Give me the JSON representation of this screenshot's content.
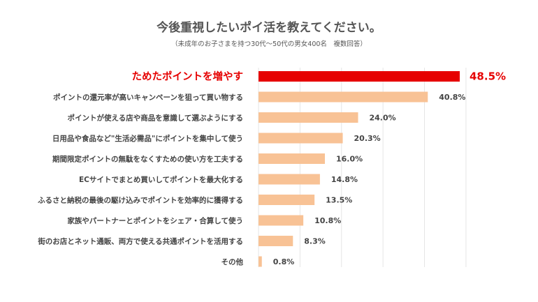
{
  "chart_data": {
    "type": "bar",
    "orientation": "horizontal",
    "title": "今後重視したいポイ活を教えてください。",
    "subtitle": "（未成年のお子さまを持つ30代〜50代の男女400名　複数回答）",
    "xlim": [
      0,
      50
    ],
    "grid": true,
    "categories": [
      "ためたポイントを増やす",
      "ポイントの還元率が高いキャンペーンを狙って買い物する",
      "ポイントが使える店や商品を意識して選ぶようにする",
      "日用品や食品など\"生活必需品\"にポイントを集中して使う",
      "期間限定ポイントの無駄をなくすための使い方を工夫する",
      "ECサイトでまとめ買いしてポイントを最大化する",
      "ふるさと納税の最後の駆け込みでポイントを効率的に獲得する",
      "家族やパートナーとポイントをシェア・合算して使う",
      "街のお店とネット通販、両方で使える共通ポイントを活用する",
      "その他"
    ],
    "values": [
      48.5,
      40.8,
      24.0,
      20.3,
      16.0,
      14.8,
      13.5,
      10.8,
      8.3,
      0.8
    ],
    "value_labels": [
      "48.5%",
      "40.8%",
      "24.0%",
      "20.3%",
      "16.0%",
      "14.8%",
      "13.5%",
      "10.8%",
      "8.3%",
      "0.8%"
    ],
    "highlight_index": 0,
    "colors": {
      "highlight": "#e60000",
      "bar": "#f8c295",
      "grid": "#e6e6e6",
      "text": "#444444"
    }
  }
}
